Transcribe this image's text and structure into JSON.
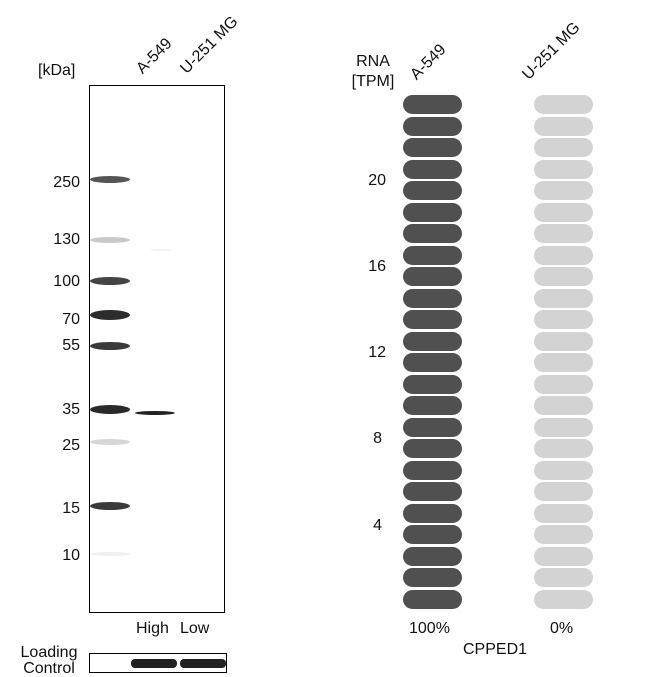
{
  "western_blot": {
    "unit_label": "[kDa]",
    "lanes": [
      "A-549",
      "U-251 MG"
    ],
    "markers": [
      "250",
      "130",
      "100",
      "70",
      "55",
      "35",
      "25",
      "15",
      "10"
    ],
    "expression": [
      "High",
      "Low"
    ],
    "loading_control": "Loading\nControl"
  },
  "rna": {
    "axis_label_line1": "RNA",
    "axis_label_line2": "[TPM]",
    "lanes": [
      "A-549",
      "U-251 MG"
    ],
    "ticks": [
      "20",
      "16",
      "12",
      "8",
      "4"
    ],
    "percent_a": "100%",
    "percent_b": "0%",
    "gene": "CPPED1",
    "pill_count": 24,
    "colors": {
      "a549": "#505050",
      "u251": "#d3d3d3"
    }
  }
}
